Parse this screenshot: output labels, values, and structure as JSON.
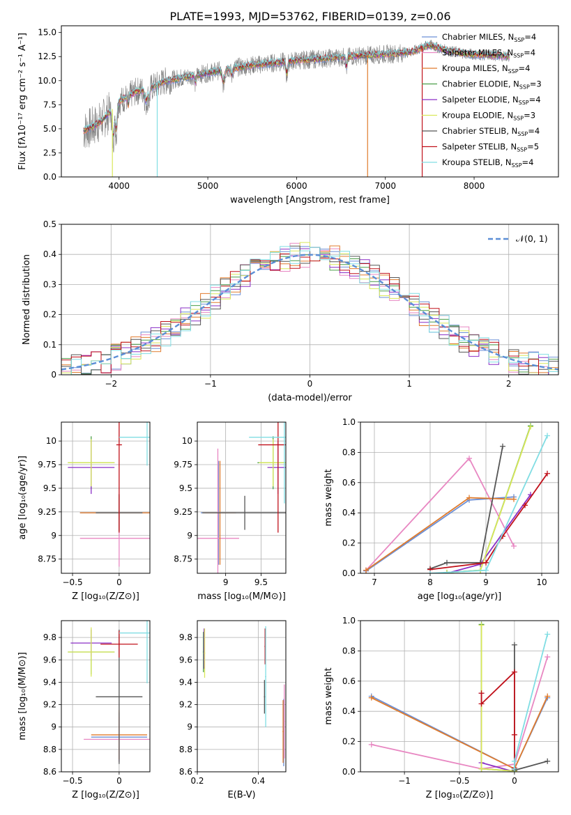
{
  "figure_title": "PLATE=1993, MJD=53762, FIBERID=0139, z=0.06",
  "colors": {
    "Chabrier MILES": "#6b8fd6",
    "Salpeter MILES": "#e887c2",
    "Kroupa MILES": "#e07b2c",
    "Chabrier ELODIE": "#4a9e48",
    "Salpeter ELODIE": "#8a2ec6",
    "Kroupa ELODIE": "#d9e85a",
    "Chabrier STELIB": "#555555",
    "Salpeter STELIB": "#c0101a",
    "Kroupa STELIB": "#80dde3",
    "data": "#7f7f7f",
    "normal": "#5b8ed6"
  },
  "chart_data": [
    {
      "id": "spectrum",
      "type": "line",
      "title": "PLATE=1993, MJD=53762, FIBERID=0139, z=0.06",
      "xlabel": "wavelength [Angstrom, rest frame]",
      "ylabel": "Flux [fλ10⁻¹⁷ erg cm⁻² s⁻¹ A⁻¹]",
      "xlim": [
        3350,
        8950
      ],
      "ylim": [
        0,
        15.7
      ],
      "xticks": [
        4000,
        5000,
        6000,
        7000,
        8000
      ],
      "yticks": [
        0.0,
        2.5,
        5.0,
        7.5,
        10.0,
        12.5,
        15.0
      ],
      "legend_position": "top-right",
      "legend": [
        {
          "label": "Chabrier MILES, N",
          "sub": "SSP",
          "tail": "=4",
          "model": "Chabrier MILES"
        },
        {
          "label": "Salpeter MILES, N",
          "sub": "SSP",
          "tail": "=4",
          "model": "Salpeter MILES"
        },
        {
          "label": "Kroupa MILES, N",
          "sub": "SSP",
          "tail": "=4",
          "model": "Kroupa MILES"
        },
        {
          "label": "Chabrier ELODIE, N",
          "sub": "SSP",
          "tail": "=3",
          "model": "Chabrier ELODIE"
        },
        {
          "label": "Salpeter ELODIE, N",
          "sub": "SSP",
          "tail": "=4",
          "model": "Salpeter ELODIE"
        },
        {
          "label": "Kroupa ELODIE, N",
          "sub": "SSP",
          "tail": "=3",
          "model": "Kroupa ELODIE"
        },
        {
          "label": "Chabrier STELIB, N",
          "sub": "SSP",
          "tail": "=4",
          "model": "Chabrier STELIB"
        },
        {
          "label": "Salpeter STELIB, N",
          "sub": "SSP",
          "tail": "=5",
          "model": "Salpeter STELIB"
        },
        {
          "label": "Kroupa STELIB, N",
          "sub": "SSP",
          "tail": "=4",
          "model": "Kroupa STELIB"
        }
      ],
      "continuum": {
        "x": [
          3600,
          3700,
          3800,
          3900,
          4000,
          4100,
          4200,
          4300,
          4400,
          4500,
          4700,
          5000,
          5200,
          5500,
          5800,
          6000,
          6300,
          6600,
          6900,
          7100,
          7300,
          7500,
          7700,
          8000,
          8300,
          8400
        ],
        "y": [
          4.8,
          5.2,
          5.8,
          6.8,
          7.8,
          8.4,
          8.9,
          9.1,
          9.4,
          9.9,
          10.3,
          10.8,
          11.2,
          11.6,
          11.9,
          12.1,
          12.3,
          12.5,
          12.7,
          12.8,
          13.0,
          13.7,
          13.1,
          12.7,
          12.6,
          12.5
        ]
      },
      "spikes": [
        {
          "x": 3925,
          "y": 0.0,
          "model": "Kroupa ELODIE"
        },
        {
          "x": 4430,
          "y": 0.0,
          "model": "Kroupa STELIB"
        },
        {
          "x": 6800,
          "y": 0.0,
          "model": "Kroupa MILES"
        },
        {
          "x": 7415,
          "y": 0.0,
          "model": "Salpeter STELIB"
        }
      ]
    },
    {
      "id": "residuals",
      "type": "histogram",
      "xlabel": "(data-model)/error",
      "ylabel": "Normed distribution",
      "xlim": [
        -2.5,
        2.5
      ],
      "ylim": [
        0,
        0.5
      ],
      "xticks": [
        -2,
        -1,
        0,
        1,
        2
      ],
      "yticks": [
        0.0,
        0.1,
        0.2,
        0.3,
        0.4,
        0.5
      ],
      "bin_width": 0.1,
      "legend_position": "top-right",
      "curve_label": "𝒩(0, 1)",
      "reference": "normal(0,1)"
    },
    {
      "id": "age_vs_Z",
      "type": "errorbar",
      "xlabel": "Z [log₁₀(Z/Z⊙)]",
      "ylabel": "age  [log₁₀(age/yr)]",
      "xlim": [
        -0.62,
        0.33
      ],
      "ylim": [
        8.6,
        10.2
      ],
      "xticks": [
        -0.5,
        0.0
      ],
      "yticks": [
        8.75,
        9.0,
        9.25,
        9.5,
        9.75,
        10.0
      ],
      "points": [
        {
          "model": "Chabrier MILES",
          "x": 0.0,
          "xerr": 0.42,
          "y": 9.24,
          "yerr": 0.19
        },
        {
          "model": "Salpeter MILES",
          "x": 0.0,
          "xerr": 0.42,
          "y": 8.97,
          "yerr": 0.3
        },
        {
          "model": "Kroupa MILES",
          "x": 0.0,
          "xerr": 0.42,
          "y": 9.24,
          "yerr": 0.19
        },
        {
          "model": "Chabrier ELODIE",
          "x": -0.3,
          "xerr": 0.25,
          "y": 9.77,
          "yerr": 0.28
        },
        {
          "model": "Salpeter ELODIE",
          "x": -0.3,
          "xerr": 0.25,
          "y": 9.72,
          "yerr": 0.28
        },
        {
          "model": "Kroupa ELODIE",
          "x": -0.3,
          "xerr": 0.25,
          "y": 9.77,
          "yerr": 0.25
        },
        {
          "model": "Chabrier STELIB",
          "x": 0.0,
          "xerr": 0.25,
          "y": 9.24,
          "yerr": 0.2
        },
        {
          "model": "Salpeter STELIB",
          "x": 0.0,
          "xerr": 0.03,
          "y": 9.96,
          "yerr": 0.93
        },
        {
          "model": "Kroupa STELIB",
          "x": 0.3,
          "xerr": 0.3,
          "y": 10.04,
          "yerr": 0.3
        }
      ]
    },
    {
      "id": "age_vs_mass",
      "type": "errorbar",
      "xlabel": "mass [log₁₀(M/M⊙)]",
      "ylabel": "",
      "xlim": [
        8.6,
        9.85
      ],
      "ylim": [
        8.6,
        10.2
      ],
      "xticks": [
        9.0,
        9.5
      ],
      "yticks": [
        8.75,
        9.0,
        9.25,
        9.5,
        9.75,
        10.0
      ],
      "points": [
        {
          "model": "Chabrier MILES",
          "x": 8.9,
          "xerr": 0.25,
          "y": 9.24,
          "yerr": 0.55
        },
        {
          "model": "Salpeter MILES",
          "x": 8.89,
          "xerr": 0.3,
          "y": 8.97,
          "yerr": 0.95
        },
        {
          "model": "Kroupa MILES",
          "x": 8.92,
          "xerr": 0.22,
          "y": 9.24,
          "yerr": 0.55
        },
        {
          "model": "Chabrier ELODIE",
          "x": 9.67,
          "xerr": 0.22,
          "y": 9.77,
          "yerr": 0.28
        },
        {
          "model": "Salpeter ELODIE",
          "x": 9.74,
          "xerr": 0.15,
          "y": 9.72,
          "yerr": 0.28
        },
        {
          "model": "Kroupa ELODIE",
          "x": 9.67,
          "xerr": 0.2,
          "y": 9.77,
          "yerr": 0.25
        },
        {
          "model": "Chabrier STELIB",
          "x": 9.27,
          "xerr": 0.6,
          "y": 9.24,
          "yerr": 0.18
        },
        {
          "model": "Salpeter STELIB",
          "x": 9.74,
          "xerr": 0.28,
          "y": 9.96,
          "yerr": 0.93
        },
        {
          "model": "Kroupa STELIB",
          "x": 9.83,
          "xerr": 0.5,
          "y": 10.04,
          "yerr": 0.7
        }
      ]
    },
    {
      "id": "mass_weight_vs_age",
      "type": "line",
      "xlabel": "age  [log₁₀(age/yr)]",
      "ylabel": "mass weight",
      "xlim": [
        6.75,
        10.3
      ],
      "ylim": [
        0,
        1.0
      ],
      "xticks": [
        7,
        8,
        9,
        10
      ],
      "yticks": [
        0.0,
        0.2,
        0.4,
        0.6,
        0.8,
        1.0
      ],
      "series": [
        {
          "model": "Chabrier MILES",
          "x": [
            6.85,
            8.7,
            9.5
          ],
          "y": [
            0.015,
            0.485,
            0.505
          ]
        },
        {
          "model": "Salpeter MILES",
          "x": [
            6.85,
            8.7,
            9.5
          ],
          "y": [
            0.02,
            0.76,
            0.18
          ]
        },
        {
          "model": "Kroupa MILES",
          "x": [
            6.85,
            8.7,
            9.5
          ],
          "y": [
            0.02,
            0.5,
            0.49
          ]
        },
        {
          "model": "Chabrier ELODIE",
          "x": [
            8.3,
            8.9,
            9.8
          ],
          "y": [
            0.005,
            0.02,
            0.975
          ]
        },
        {
          "model": "Salpeter ELODIE",
          "x": [
            8.3,
            8.9,
            9.8
          ],
          "y": [
            0.0,
            0.06,
            0.52
          ]
        },
        {
          "model": "Kroupa ELODIE",
          "x": [
            8.3,
            8.9,
            9.8
          ],
          "y": [
            0.005,
            0.02,
            0.97
          ]
        },
        {
          "model": "Chabrier STELIB",
          "x": [
            8.0,
            8.3,
            8.9,
            9.3
          ],
          "y": [
            0.03,
            0.07,
            0.07,
            0.84
          ]
        },
        {
          "model": "Salpeter STELIB",
          "x": [
            8.0,
            9.0,
            9.3,
            9.7,
            10.1
          ],
          "y": [
            0.025,
            0.07,
            0.245,
            0.45,
            0.66
          ]
        },
        {
          "model": "Kroupa STELIB",
          "x": [
            8.0,
            9.0,
            10.1
          ],
          "y": [
            0.0,
            0.02,
            0.91
          ]
        }
      ]
    },
    {
      "id": "mass_vs_Z",
      "type": "errorbar",
      "xlabel": "Z [log₁₀(Z/Z⊙)]",
      "ylabel": "mass [log₁₀(M/M⊙)]",
      "xlim": [
        -0.62,
        0.33
      ],
      "ylim": [
        8.6,
        9.95
      ],
      "xticks": [
        -0.5,
        0.0
      ],
      "yticks": [
        8.6,
        8.8,
        9.0,
        9.2,
        9.4,
        9.6,
        9.8
      ],
      "points": [
        {
          "model": "Chabrier MILES",
          "x": 0.0,
          "xerr": 0.3,
          "y": 8.91,
          "yerr": 0.22
        },
        {
          "model": "Salpeter MILES",
          "x": 0.0,
          "xerr": 0.38,
          "y": 8.89,
          "yerr": 0.2
        },
        {
          "model": "Kroupa MILES",
          "x": 0.0,
          "xerr": 0.3,
          "y": 8.93,
          "yerr": 0.22
        },
        {
          "model": "Chabrier ELODIE",
          "x": -0.3,
          "xerr": 0.25,
          "y": 9.67,
          "yerr": 0.2
        },
        {
          "model": "Salpeter ELODIE",
          "x": -0.3,
          "xerr": 0.22,
          "y": 9.75,
          "yerr": 0.12
        },
        {
          "model": "Kroupa ELODIE",
          "x": -0.3,
          "xerr": 0.25,
          "y": 9.67,
          "yerr": 0.22
        },
        {
          "model": "Chabrier STELIB",
          "x": 0.0,
          "xerr": 0.25,
          "y": 9.27,
          "yerr": 0.6
        },
        {
          "model": "Salpeter STELIB",
          "x": 0.0,
          "xerr": 0.2,
          "y": 9.74,
          "yerr": 0.12
        },
        {
          "model": "Kroupa STELIB",
          "x": 0.3,
          "xerr": 0.3,
          "y": 9.84,
          "yerr": 0.45
        }
      ]
    },
    {
      "id": "mass_vs_ebv",
      "type": "errorbar",
      "xlabel": "E(B-V)",
      "ylabel": "",
      "xlim": [
        0.2,
        0.49
      ],
      "ylim": [
        8.6,
        9.95
      ],
      "xticks": [
        0.2,
        0.4
      ],
      "yticks": [
        8.6,
        8.8,
        9.0,
        9.2,
        9.4,
        9.6,
        9.8
      ],
      "points": [
        {
          "model": "Chabrier MILES",
          "x": 0.483,
          "xerr": 0.002,
          "y": 8.95,
          "yerr": 0.3
        },
        {
          "model": "Salpeter MILES",
          "x": 0.485,
          "xerr": 0.002,
          "y": 9.05,
          "yerr": 0.33
        },
        {
          "model": "Kroupa MILES",
          "x": 0.481,
          "xerr": 0.002,
          "y": 8.96,
          "yerr": 0.28
        },
        {
          "model": "Chabrier ELODIE",
          "x": 0.22,
          "xerr": 0.002,
          "y": 9.67,
          "yerr": 0.18
        },
        {
          "model": "Salpeter ELODIE",
          "x": 0.222,
          "xerr": 0.002,
          "y": 9.7,
          "yerr": 0.18
        },
        {
          "model": "Kroupa ELODIE",
          "x": 0.224,
          "xerr": 0.002,
          "y": 9.66,
          "yerr": 0.22
        },
        {
          "model": "Chabrier STELIB",
          "x": 0.42,
          "xerr": 0.002,
          "y": 9.27,
          "yerr": 0.15
        },
        {
          "model": "Salpeter STELIB",
          "x": 0.422,
          "xerr": 0.002,
          "y": 9.72,
          "yerr": 0.16
        },
        {
          "model": "Kroupa STELIB",
          "x": 0.424,
          "xerr": 0.002,
          "y": 9.45,
          "yerr": 0.45
        }
      ]
    },
    {
      "id": "mass_weight_vs_Z",
      "type": "line",
      "xlabel": "Z [log₁₀(Z/Z⊙)]",
      "ylabel": "mass weight",
      "xlim": [
        -1.4,
        0.4
      ],
      "ylim": [
        0,
        1.0
      ],
      "xticks": [
        -1.0,
        -0.5,
        0.0
      ],
      "yticks": [
        0.0,
        0.2,
        0.4,
        0.6,
        0.8,
        1.0
      ],
      "series": [
        {
          "model": "Chabrier MILES",
          "x": [
            -1.3,
            0.0,
            0.3
          ],
          "y": [
            0.5,
            0.02,
            0.49
          ]
        },
        {
          "model": "Salpeter MILES",
          "x": [
            -1.3,
            -0.3,
            0.0,
            0.3
          ],
          "y": [
            0.18,
            0.02,
            0.05,
            0.76
          ]
        },
        {
          "model": "Kroupa MILES",
          "x": [
            -1.3,
            0.0,
            0.3
          ],
          "y": [
            0.49,
            0.02,
            0.5
          ]
        },
        {
          "model": "Chabrier ELODIE",
          "x": [
            -0.3,
            -0.3,
            0.0
          ],
          "y": [
            0.975,
            0.02,
            0.005
          ]
        },
        {
          "model": "Salpeter ELODIE",
          "x": [
            -0.3,
            -0.3,
            0.0
          ],
          "y": [
            0.52,
            0.06,
            0.0
          ]
        },
        {
          "model": "Kroupa ELODIE",
          "x": [
            -0.3,
            -0.3,
            0.0
          ],
          "y": [
            0.97,
            0.02,
            0.005
          ]
        },
        {
          "model": "Chabrier STELIB",
          "x": [
            0.0,
            0.0,
            0.3
          ],
          "y": [
            0.84,
            0.01,
            0.07
          ]
        },
        {
          "model": "Salpeter STELIB",
          "x": [
            -0.3,
            -0.3,
            0.0,
            0.0,
            0.0
          ],
          "y": [
            0.52,
            0.45,
            0.66,
            0.245,
            0.025
          ]
        },
        {
          "model": "Kroupa STELIB",
          "x": [
            0.0,
            0.0,
            0.3
          ],
          "y": [
            0.02,
            0.07,
            0.91
          ]
        }
      ]
    }
  ]
}
